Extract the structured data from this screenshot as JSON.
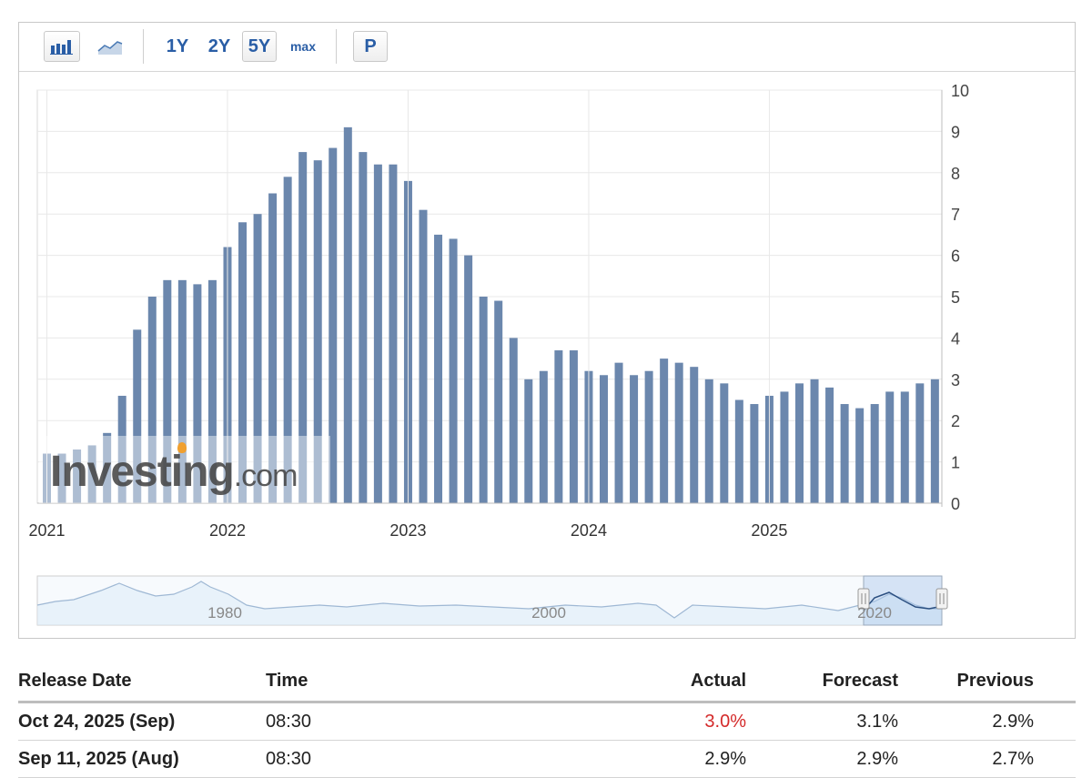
{
  "toolbar": {
    "bar_icon": "bar-chart-icon",
    "line_icon": "line-chart-icon",
    "ranges": [
      "1Y",
      "2Y",
      "5Y",
      "max"
    ],
    "active_range": "5Y",
    "p_label": "P"
  },
  "colors": {
    "bar": "#6b87ad",
    "grid": "#e8e8e8",
    "axis_text": "#444444",
    "navigator_fill": "#dcebf8",
    "navigator_line": "#9fb8d4",
    "actual_highlight": "#d42a2a"
  },
  "chart_data": {
    "type": "bar",
    "x_start": "2021-01",
    "interval": "monthly",
    "y_axis_position": "right",
    "ylim": [
      0,
      10
    ],
    "yticks": [
      0,
      1,
      2,
      3,
      4,
      5,
      6,
      7,
      8,
      9,
      10
    ],
    "xtick_labels": [
      "2021",
      "2022",
      "2023",
      "2024",
      "2025"
    ],
    "values": [
      1.2,
      1.2,
      1.3,
      1.4,
      1.7,
      2.6,
      4.2,
      5.0,
      5.4,
      5.4,
      5.3,
      5.4,
      6.2,
      6.8,
      7.0,
      7.5,
      7.9,
      8.5,
      8.3,
      8.6,
      9.1,
      8.5,
      8.2,
      8.2,
      7.8,
      7.1,
      6.5,
      6.4,
      6.0,
      5.0,
      4.9,
      4.0,
      3.0,
      3.2,
      3.7,
      3.7,
      3.2,
      3.1,
      3.4,
      3.1,
      3.2,
      3.5,
      3.4,
      3.3,
      3.0,
      2.9,
      2.5,
      2.4,
      2.6,
      2.7,
      2.9,
      3.0,
      2.8,
      2.4,
      2.3,
      2.4,
      2.7,
      2.7,
      2.9,
      3.0
    ],
    "watermark": "Investing.com",
    "navigator_labels": [
      "1980",
      "2000",
      "2020"
    ]
  },
  "table": {
    "headers": {
      "release_date": "Release Date",
      "time": "Time",
      "actual": "Actual",
      "forecast": "Forecast",
      "previous": "Previous"
    },
    "rows": [
      {
        "release_date": "Oct 24, 2025 (Sep)",
        "time": "08:30",
        "actual": "3.0%",
        "forecast": "3.1%",
        "previous": "2.9%"
      },
      {
        "release_date": "Sep 11, 2025 (Aug)",
        "time": "08:30",
        "actual": "2.9%",
        "forecast": "2.9%",
        "previous": "2.7%"
      }
    ]
  }
}
